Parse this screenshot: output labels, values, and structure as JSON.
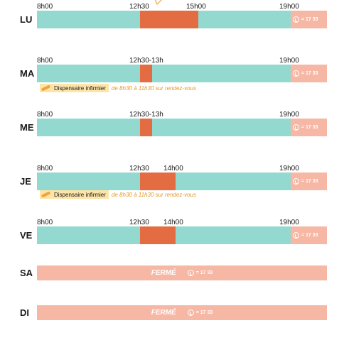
{
  "days": {
    "lu": {
      "label": "LU",
      "t1": "8h00",
      "t2": "12h30",
      "t3": "15h00",
      "t4": "19h00"
    },
    "ma": {
      "label": "MA",
      "t1": "8h00",
      "t2": "12h30-13h",
      "t4": "19h00"
    },
    "me": {
      "label": "ME",
      "t1": "8h00",
      "t2": "12h30-13h",
      "t4": "19h00"
    },
    "je": {
      "label": "JE",
      "t1": "8h00",
      "t2": "12h30",
      "t3": "14h00",
      "t4": "19h00"
    },
    "ve": {
      "label": "VE",
      "t1": "8h00",
      "t2": "12h30",
      "t3": "14h00",
      "t4": "19h00"
    },
    "sa": {
      "label": "SA",
      "status": "FERMÉ"
    },
    "di": {
      "label": "DI",
      "status": "FERMÉ"
    }
  },
  "phone_number": "= 17 33",
  "note": {
    "badge": "Dispensaire infirmier",
    "text": "de 8h30 à 11h30 sur rendez-vous"
  },
  "icons": {
    "phone": "phone-icon",
    "syringe": "syringe-icon"
  },
  "colors": {
    "open": "#93d9d0",
    "lunch": "#e46c42",
    "phone_closed": "#f7b7a5",
    "note_badge": "#fde4a8",
    "note_text": "#e39a2a"
  }
}
